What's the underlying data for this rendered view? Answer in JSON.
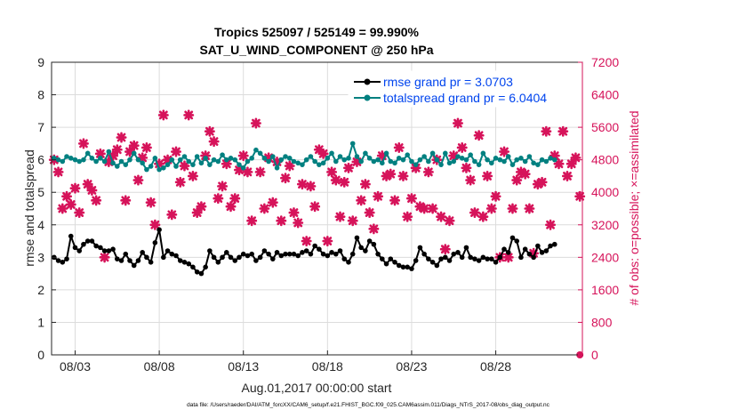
{
  "chart_data": {
    "type": "line",
    "title_line1": "Tropics 525097 / 525149 = 99.990%",
    "title_line2": "SAT_U_WIND_COMPONENT @ 250 hPa",
    "xlabel": "Aug.01,2017 00:00:00 start",
    "ylabel_left": "rmse and totalspread",
    "ylabel_right": "# of obs: o=possible; ×=assimilated",
    "footer": "data file: /Users/raeder/DAI/ATM_forcXX/CAM6_setup/f.e21.FHIST_BGC.f09_025.CAM6assim.011/Diags_NTrS_2017-08/obs_diag_output.nc",
    "xlim": [
      1.6,
      33.15
    ],
    "ylim_left": [
      0,
      9
    ],
    "ylim_right": [
      0,
      7200
    ],
    "x_ticks": [
      3,
      8,
      13,
      18,
      23,
      28
    ],
    "x_tick_labels": [
      "08/03",
      "08/08",
      "08/13",
      "08/18",
      "08/23",
      "08/28"
    ],
    "y_ticks_left": [
      0,
      1,
      2,
      3,
      4,
      5,
      6,
      7,
      8,
      9
    ],
    "y_ticks_right": [
      0,
      800,
      1600,
      2400,
      3200,
      4000,
      4800,
      5600,
      6400,
      7200
    ],
    "colors": {
      "rmse": "#000000",
      "spread": "#008080",
      "obs": "#d6135a",
      "axis": "#262626",
      "grid": "#dcdcdc",
      "legend_text": "#0044ee"
    },
    "legend": [
      {
        "label": "rmse grand pr = 3.0703"
      },
      {
        "label": "totalspread grand pr = 6.0404"
      }
    ],
    "series": [
      {
        "name": "rmse",
        "x_start": 1.75,
        "x_step": 0.25,
        "values": [
          3.0,
          2.9,
          2.85,
          2.95,
          3.65,
          3.3,
          3.2,
          3.4,
          3.5,
          3.5,
          3.35,
          3.3,
          3.2,
          3.2,
          3.25,
          2.95,
          2.9,
          3.1,
          2.9,
          2.75,
          2.9,
          3.15,
          3.0,
          2.85,
          3.45,
          3.85,
          3.0,
          3.2,
          3.1,
          3.05,
          2.9,
          2.85,
          2.8,
          2.7,
          2.55,
          2.5,
          2.7,
          3.2,
          3.0,
          2.85,
          3.0,
          3.15,
          3.0,
          2.9,
          3.0,
          3.1,
          3.05,
          3.1,
          2.9,
          3.0,
          3.2,
          3.1,
          2.95,
          3.15,
          3.05,
          3.1,
          3.1,
          3.1,
          3.05,
          3.15,
          3.2,
          3.1,
          3.35,
          3.25,
          3.1,
          3.05,
          3.15,
          3.1,
          3.2,
          2.95,
          2.85,
          3.1,
          3.6,
          3.3,
          3.2,
          3.5,
          3.4,
          3.1,
          2.95,
          2.8,
          2.95,
          2.85,
          2.75,
          2.7,
          2.7,
          2.65,
          2.9,
          3.3,
          3.1,
          2.95,
          2.85,
          2.75,
          2.95,
          3.0,
          2.9,
          3.1,
          3.15,
          3.0,
          3.3,
          3.0,
          2.95,
          2.9,
          3.0,
          2.95,
          2.95,
          2.85,
          3.0,
          3.25,
          3.15,
          3.6,
          3.5,
          3.0,
          3.25,
          3.1,
          3.0,
          3.35,
          3.15,
          3.2,
          3.35,
          3.4
        ]
      },
      {
        "name": "totalspread",
        "x_start": 1.75,
        "x_step": 0.25,
        "values": [
          6.05,
          6.0,
          5.95,
          6.1,
          6.05,
          6.0,
          5.95,
          6.0,
          6.2,
          6.05,
          5.95,
          6.05,
          5.95,
          6.25,
          5.9,
          5.8,
          5.95,
          5.85,
          6.0,
          6.2,
          6.0,
          5.9,
          5.7,
          5.8,
          6.05,
          5.7,
          5.75,
          5.85,
          6.0,
          5.8,
          6.0,
          6.1,
          5.95,
          5.85,
          6.1,
          5.9,
          6.05,
          5.85,
          6.0,
          5.95,
          6.15,
          6.0,
          6.05,
          6.0,
          5.85,
          5.75,
          5.95,
          6.05,
          6.3,
          6.2,
          6.05,
          5.95,
          6.1,
          5.75,
          6.0,
          6.1,
          6.05,
          5.95,
          5.9,
          5.85,
          6.0,
          6.1,
          5.95,
          5.85,
          5.9,
          6.05,
          6.2,
          5.95,
          6.1,
          6.0,
          6.05,
          6.5,
          6.1,
          5.95,
          6.2,
          6.05,
          5.95,
          6.0,
          5.9,
          6.2,
          5.95,
          5.9,
          6.05,
          6.0,
          6.15,
          5.95,
          5.85,
          6.0,
          6.1,
          5.95,
          6.2,
          6.0,
          5.85,
          6.2,
          5.9,
          5.95,
          6.1,
          6.05,
          6.0,
          6.15,
          5.95,
          5.85,
          6.2,
          6.0,
          5.9,
          6.05,
          6.0,
          5.95,
          6.1,
          5.85,
          6.0,
          6.05,
          5.95,
          6.1,
          5.9,
          5.85,
          6.0,
          5.95,
          6.05,
          6.0
        ]
      },
      {
        "name": "obs_assimilated",
        "x": [
          1.75,
          2.0,
          2.25,
          2.5,
          2.75,
          3.0,
          3.25,
          3.5,
          3.75,
          4.0,
          4.25,
          4.5,
          4.75,
          5.0,
          5.25,
          5.5,
          5.75,
          6.0,
          6.25,
          6.5,
          6.75,
          7.0,
          7.25,
          7.5,
          7.75,
          8.0,
          8.25,
          8.5,
          8.75,
          9.0,
          9.25,
          9.5,
          9.75,
          10.0,
          10.25,
          10.5,
          10.75,
          11.0,
          11.25,
          11.5,
          11.75,
          12.0,
          12.25,
          12.5,
          12.75,
          13.0,
          13.25,
          13.5,
          13.75,
          14.0,
          14.25,
          14.5,
          14.75,
          15.0,
          15.25,
          15.5,
          15.75,
          16.0,
          16.25,
          16.5,
          16.75,
          17.0,
          17.25,
          17.5,
          17.75,
          18.0,
          18.25,
          18.5,
          18.75,
          19.0,
          19.25,
          19.5,
          19.75,
          20.0,
          20.25,
          20.5,
          20.75,
          21.0,
          21.25,
          21.5,
          21.75,
          22.0,
          22.25,
          22.5,
          22.75,
          23.0,
          23.25,
          23.5,
          23.75,
          24.0,
          24.25,
          24.5,
          24.75,
          25.0,
          25.25,
          25.5,
          25.75,
          26.0,
          26.25,
          26.5,
          26.75,
          27.0,
          27.25,
          27.5,
          27.75,
          28.0,
          28.25,
          28.5,
          28.75,
          29.0,
          29.25,
          29.5,
          29.75,
          30.0,
          30.25,
          30.5,
          30.75,
          31.0,
          31.25,
          31.5,
          31.75,
          32.0,
          32.25,
          32.5,
          32.75,
          33.0
        ],
        "values": [
          4800,
          4500,
          3600,
          3900,
          3700,
          4100,
          3500,
          5200,
          4200,
          4050,
          3800,
          4950,
          2400,
          4750,
          4900,
          5050,
          5350,
          3800,
          5000,
          5150,
          4300,
          4850,
          5100,
          3750,
          3200,
          4700,
          5900,
          4800,
          3450,
          5000,
          4250,
          4650,
          5900,
          4400,
          3500,
          3650,
          4900,
          5500,
          5250,
          3850,
          4150,
          4700,
          3650,
          3850,
          4550,
          4900,
          4500,
          3300,
          5700,
          4500,
          3600,
          4850,
          3750,
          4750,
          3300,
          4350,
          4650,
          3500,
          3250,
          4200,
          2800,
          4150,
          3650,
          5050,
          4950,
          2800,
          4500,
          4300,
          3400,
          4250,
          4600,
          3300,
          4750,
          3800,
          4200,
          3500,
          3100,
          3900,
          4900,
          4400,
          4450,
          3800,
          5100,
          4400,
          3400,
          3850,
          4600,
          3650,
          3600,
          4500,
          3600,
          4800,
          3400,
          2600,
          3300,
          4900,
          5700,
          5100,
          4600,
          4300,
          3500,
          5400,
          3400,
          4400,
          3600,
          3900,
          2400,
          5000,
          2400,
          3600,
          4300,
          4500,
          4450,
          3600,
          2500,
          4200,
          4250,
          5500,
          3200,
          4900,
          4700,
          5500,
          4400,
          4700,
          4850,
          3900
        ]
      }
    ],
    "obs_possible_last": {
      "x": 33.0,
      "value": 0
    }
  }
}
